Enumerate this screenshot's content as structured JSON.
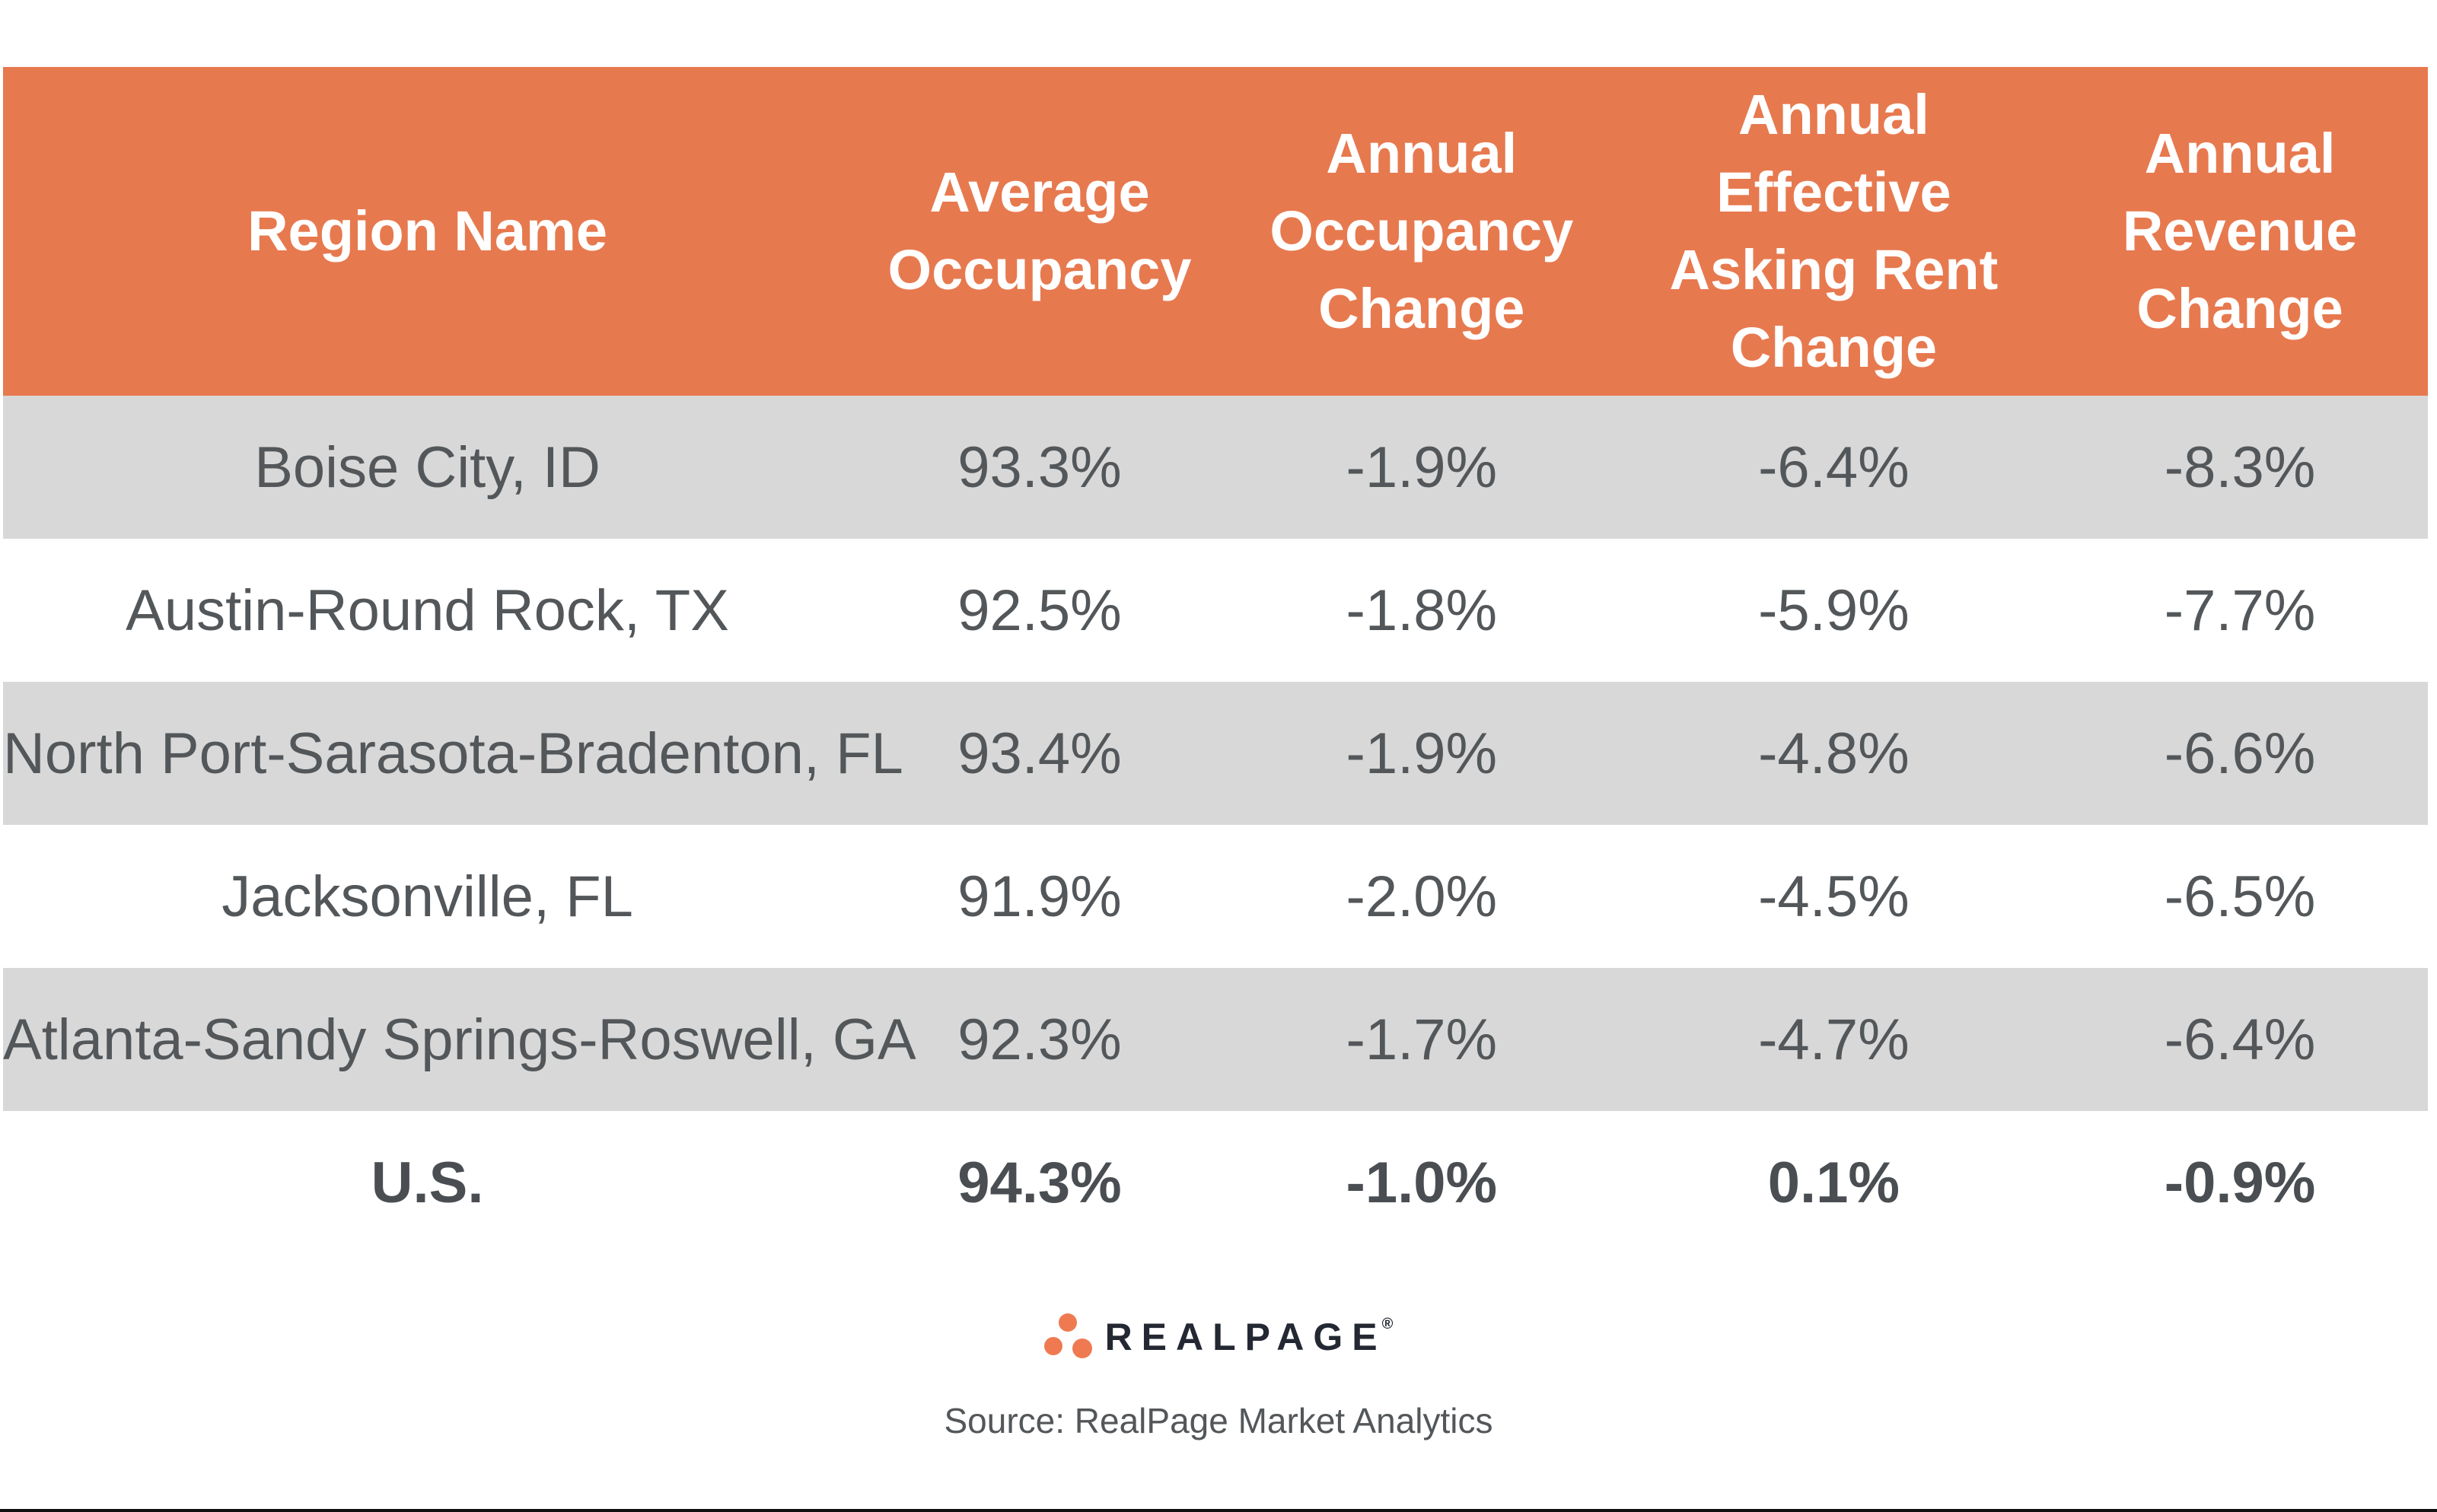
{
  "chart_data": {
    "type": "table",
    "columns": [
      "Region Name",
      "Average\nOccupancy",
      "Annual\nOccupancy\nChange",
      "Annual Effective\nAsking Rent\nChange",
      "Annual\nRevenue\nChange"
    ],
    "rows": [
      [
        "Boise City, ID",
        "93.3%",
        "-1.9%",
        "-6.4%",
        "-8.3%"
      ],
      [
        "Austin-Round Rock, TX",
        "92.5%",
        "-1.8%",
        "-5.9%",
        "-7.7%"
      ],
      [
        "North Port-Sarasota-Bradenton, FL",
        "93.4%",
        "-1.9%",
        "-4.8%",
        "-6.6%"
      ],
      [
        "Jacksonville, FL",
        "91.9%",
        "-2.0%",
        "-4.5%",
        "-6.5%"
      ],
      [
        "Atlanta-Sandy Springs-Roswell, GA",
        "92.3%",
        "-1.7%",
        "-4.7%",
        "-6.4%"
      ],
      [
        "U.S.",
        "94.3%",
        "-1.0%",
        "0.1%",
        "-0.9%"
      ]
    ],
    "emphasis_row": "U.S.",
    "layout": {
      "striped_rows": "grey on rows 1,3,5",
      "grid": false
    }
  },
  "footer": {
    "logo_text": "REALPAGE",
    "registered_mark": "®",
    "source_text": "Source: RealPage Market Analytics"
  },
  "colors": {
    "header_bg": "#E7794F",
    "row_alt_bg": "#D8D8D8",
    "data_text": "#53575A",
    "header_text": "#FFFFFF",
    "logo_dot": "#EF7A52",
    "logo_text": "#232832",
    "bottom_line": "#101010"
  }
}
